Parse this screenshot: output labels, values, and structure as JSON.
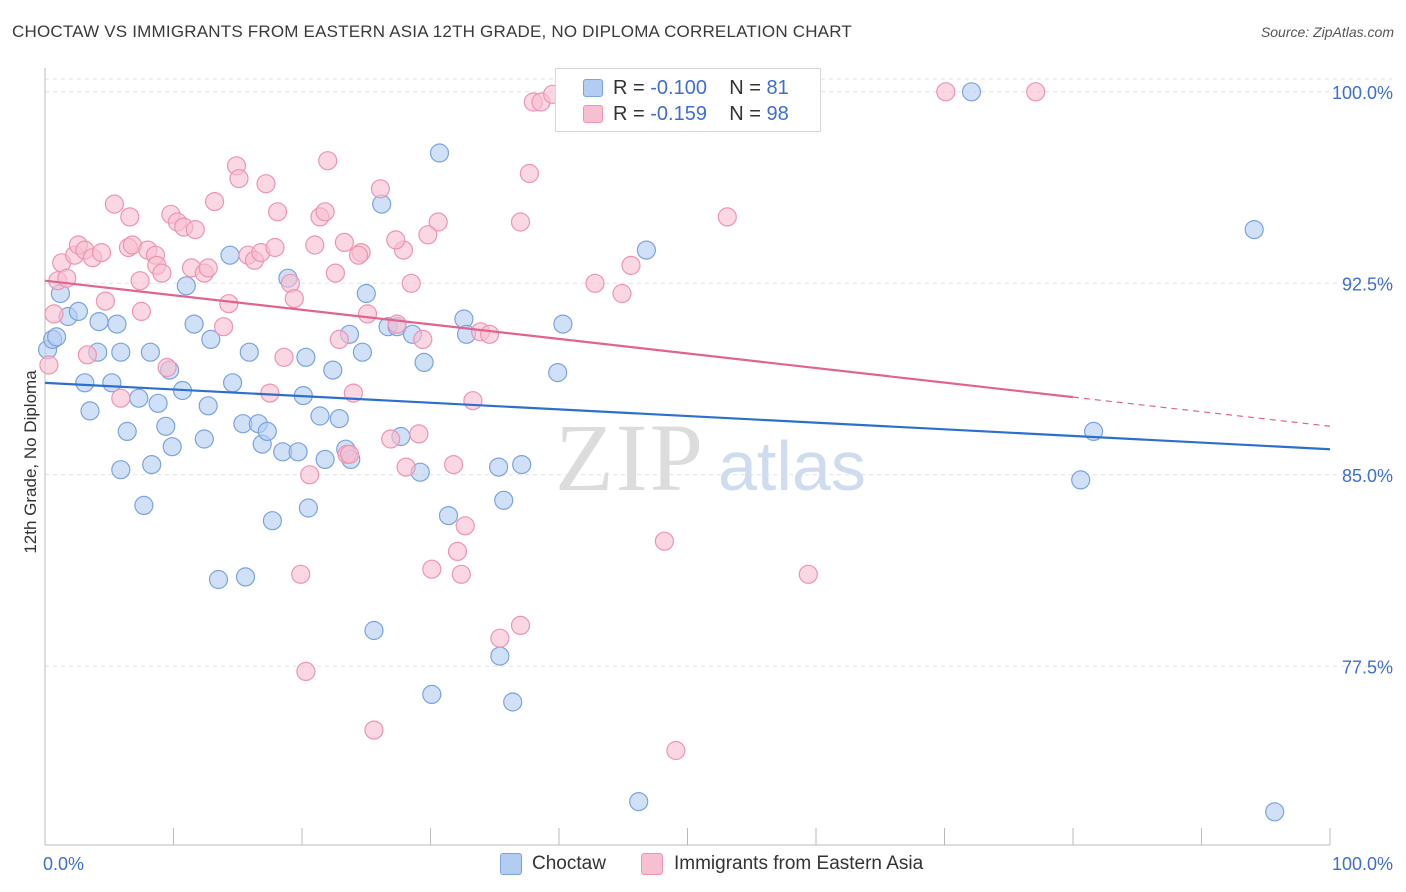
{
  "title": "CHOCTAW VS IMMIGRANTS FROM EASTERN ASIA 12TH GRADE, NO DIPLOMA CORRELATION CHART",
  "source": "Source: ZipAtlas.com",
  "watermark": {
    "zip": "ZIP",
    "atlas": "atlas"
  },
  "legend_top": {
    "r_label": "R =",
    "n_label": "N =",
    "rows": [
      {
        "r": "-0.100",
        "n": "81"
      },
      {
        "r": "-0.159",
        "n": "98"
      }
    ]
  },
  "legend_bottom": [
    "Choctaw",
    "Immigrants from Eastern Asia"
  ],
  "chart_data": {
    "type": "scatter",
    "title": "CHOCTAW VS IMMIGRANTS FROM EASTERN ASIA 12TH GRADE, NO DIPLOMA CORRELATION CHART",
    "xlabel": "",
    "ylabel": "12th Grade, No Diploma",
    "xlim": [
      0,
      100
    ],
    "ylim": [
      70.5,
      100.5
    ],
    "x_tick_labels": [
      "0.0%",
      "100.0%"
    ],
    "y_ticks": [
      77.5,
      85.0,
      92.5,
      100.0
    ],
    "y_tick_labels": [
      "77.5%",
      "85.0%",
      "92.5%",
      "100.0%"
    ],
    "grid": true,
    "colors": {
      "choctaw_fill": "#b3cdf2",
      "choctaw_stroke": "#7aa3e0",
      "choctaw_line": "#2d6fcc",
      "asia_fill": "#f7bfd0",
      "asia_stroke": "#ee94b1",
      "asia_line": "#e0648f",
      "tick_label": "#3d6fcf",
      "grid": "#dde3ea",
      "axis": "#bbbbbb"
    },
    "series": [
      {
        "name": "Choctaw",
        "trend": {
          "x": [
            0,
            100
          ],
          "y": [
            88.6,
            86.0
          ],
          "dashed_from": null
        },
        "points": [
          [
            0.2,
            89.9
          ],
          [
            0.6,
            90.3
          ],
          [
            0.9,
            90.4
          ],
          [
            1.2,
            92.1
          ],
          [
            1.8,
            91.2
          ],
          [
            2.6,
            91.4
          ],
          [
            3.1,
            88.6
          ],
          [
            3.5,
            87.5
          ],
          [
            4.1,
            89.8
          ],
          [
            4.2,
            91.0
          ],
          [
            5.2,
            88.6
          ],
          [
            5.6,
            90.9
          ],
          [
            5.9,
            89.8
          ],
          [
            6.4,
            86.7
          ],
          [
            5.9,
            85.2
          ],
          [
            7.3,
            88.0
          ],
          [
            8.2,
            89.8
          ],
          [
            7.7,
            83.8
          ],
          [
            8.3,
            85.4
          ],
          [
            8.8,
            87.8
          ],
          [
            9.4,
            86.9
          ],
          [
            9.7,
            89.1
          ],
          [
            9.9,
            86.1
          ],
          [
            10.7,
            88.3
          ],
          [
            11.0,
            92.4
          ],
          [
            11.6,
            90.9
          ],
          [
            12.4,
            86.4
          ],
          [
            12.7,
            87.7
          ],
          [
            12.9,
            90.3
          ],
          [
            13.5,
            80.9
          ],
          [
            14.4,
            93.6
          ],
          [
            14.6,
            88.6
          ],
          [
            15.4,
            87.0
          ],
          [
            15.6,
            81.0
          ],
          [
            15.9,
            89.8
          ],
          [
            16.6,
            87.0
          ],
          [
            16.9,
            86.2
          ],
          [
            17.3,
            86.7
          ],
          [
            17.7,
            83.2
          ],
          [
            18.5,
            85.9
          ],
          [
            18.9,
            92.7
          ],
          [
            19.7,
            85.9
          ],
          [
            20.1,
            88.1
          ],
          [
            20.3,
            89.6
          ],
          [
            20.5,
            83.7
          ],
          [
            21.4,
            87.3
          ],
          [
            21.8,
            85.6
          ],
          [
            22.4,
            89.1
          ],
          [
            22.9,
            87.2
          ],
          [
            23.4,
            86.0
          ],
          [
            23.7,
            90.5
          ],
          [
            23.8,
            85.6
          ],
          [
            24.7,
            89.8
          ],
          [
            25.0,
            92.1
          ],
          [
            25.6,
            78.9
          ],
          [
            26.2,
            95.6
          ],
          [
            26.7,
            90.8
          ],
          [
            27.4,
            90.8
          ],
          [
            27.7,
            86.5
          ],
          [
            28.6,
            90.5
          ],
          [
            29.2,
            85.1
          ],
          [
            29.5,
            89.4
          ],
          [
            30.7,
            97.6
          ],
          [
            31.4,
            83.4
          ],
          [
            32.6,
            91.1
          ],
          [
            32.8,
            90.5
          ],
          [
            35.3,
            85.3
          ],
          [
            35.7,
            84.0
          ],
          [
            36.4,
            76.1
          ],
          [
            37.1,
            85.4
          ],
          [
            30.1,
            76.4
          ],
          [
            35.4,
            77.9
          ],
          [
            39.9,
            89.0
          ],
          [
            40.3,
            90.9
          ],
          [
            46.8,
            93.8
          ],
          [
            46.2,
            72.2
          ],
          [
            81.6,
            86.7
          ],
          [
            80.6,
            84.8
          ],
          [
            94.1,
            94.6
          ],
          [
            95.7,
            71.8
          ],
          [
            72.1,
            100.0
          ]
        ]
      },
      {
        "name": "Immigrants from Eastern Asia",
        "trend": {
          "x": [
            0,
            100
          ],
          "y": [
            92.6,
            86.9
          ],
          "dashed_from": 80
        },
        "points": [
          [
            0.3,
            89.3
          ],
          [
            0.7,
            91.3
          ],
          [
            1.0,
            92.6
          ],
          [
            1.3,
            93.3
          ],
          [
            1.7,
            92.7
          ],
          [
            2.3,
            93.6
          ],
          [
            2.6,
            94.0
          ],
          [
            3.1,
            93.8
          ],
          [
            3.3,
            89.7
          ],
          [
            3.7,
            93.5
          ],
          [
            4.4,
            93.7
          ],
          [
            4.7,
            91.8
          ],
          [
            5.4,
            95.6
          ],
          [
            5.9,
            88.0
          ],
          [
            6.5,
            93.9
          ],
          [
            6.6,
            95.1
          ],
          [
            6.8,
            94.0
          ],
          [
            7.4,
            92.6
          ],
          [
            7.5,
            91.4
          ],
          [
            8.0,
            93.8
          ],
          [
            8.6,
            93.6
          ],
          [
            8.7,
            93.2
          ],
          [
            9.1,
            92.9
          ],
          [
            9.5,
            89.2
          ],
          [
            9.8,
            95.2
          ],
          [
            10.3,
            94.9
          ],
          [
            10.8,
            94.7
          ],
          [
            11.4,
            93.1
          ],
          [
            11.7,
            94.6
          ],
          [
            12.4,
            92.9
          ],
          [
            12.7,
            93.1
          ],
          [
            13.2,
            95.7
          ],
          [
            13.9,
            90.8
          ],
          [
            14.3,
            91.7
          ],
          [
            14.9,
            97.1
          ],
          [
            15.1,
            96.6
          ],
          [
            15.8,
            93.6
          ],
          [
            16.3,
            93.4
          ],
          [
            16.8,
            93.7
          ],
          [
            17.2,
            96.4
          ],
          [
            17.5,
            88.2
          ],
          [
            17.9,
            93.9
          ],
          [
            18.1,
            95.3
          ],
          [
            18.6,
            89.6
          ],
          [
            19.1,
            92.5
          ],
          [
            19.4,
            91.9
          ],
          [
            19.9,
            81.1
          ],
          [
            20.3,
            77.3
          ],
          [
            20.6,
            85.0
          ],
          [
            21.0,
            94.0
          ],
          [
            21.4,
            95.1
          ],
          [
            21.8,
            95.3
          ],
          [
            22.0,
            97.3
          ],
          [
            22.6,
            92.9
          ],
          [
            22.9,
            90.3
          ],
          [
            23.3,
            94.1
          ],
          [
            23.5,
            85.8
          ],
          [
            23.7,
            85.8
          ],
          [
            24.0,
            88.2
          ],
          [
            24.6,
            93.7
          ],
          [
            25.1,
            91.3
          ],
          [
            25.6,
            75.0
          ],
          [
            26.1,
            96.2
          ],
          [
            26.9,
            86.4
          ],
          [
            27.4,
            90.9
          ],
          [
            27.9,
            93.8
          ],
          [
            28.1,
            85.3
          ],
          [
            28.5,
            92.5
          ],
          [
            29.1,
            86.6
          ],
          [
            29.4,
            90.3
          ],
          [
            30.1,
            81.3
          ],
          [
            30.6,
            94.9
          ],
          [
            31.8,
            85.4
          ],
          [
            32.1,
            82.0
          ],
          [
            32.4,
            81.1
          ],
          [
            32.7,
            83.0
          ],
          [
            33.3,
            87.9
          ],
          [
            33.9,
            90.6
          ],
          [
            34.6,
            90.5
          ],
          [
            35.4,
            78.6
          ],
          [
            37.0,
            79.1
          ],
          [
            37.7,
            96.8
          ],
          [
            38.0,
            99.6
          ],
          [
            38.6,
            99.6
          ],
          [
            39.5,
            99.9
          ],
          [
            42.8,
            92.5
          ],
          [
            44.9,
            92.1
          ],
          [
            45.6,
            93.2
          ],
          [
            48.2,
            82.4
          ],
          [
            49.1,
            74.2
          ],
          [
            53.1,
            95.1
          ],
          [
            59.4,
            81.1
          ],
          [
            70.1,
            100.0
          ],
          [
            77.1,
            100.0
          ],
          [
            37.0,
            94.9
          ],
          [
            29.8,
            94.4
          ],
          [
            27.3,
            94.2
          ],
          [
            24.4,
            93.6
          ]
        ]
      }
    ]
  }
}
